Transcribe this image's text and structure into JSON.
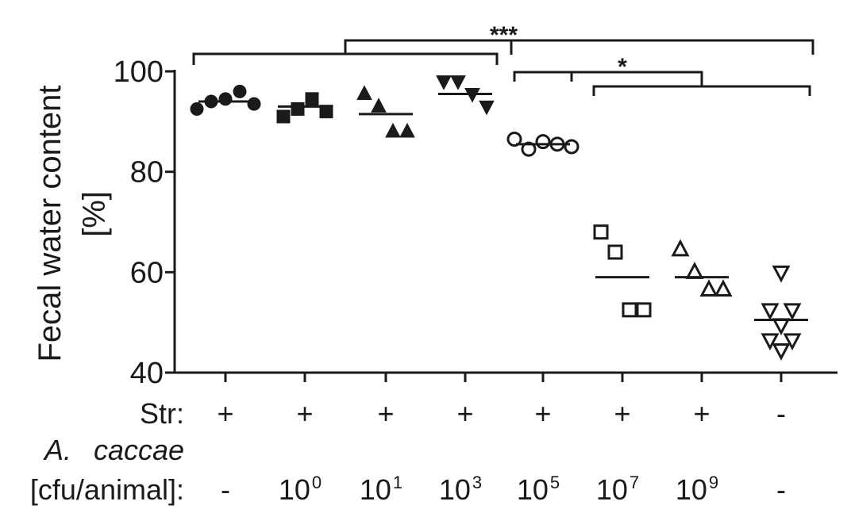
{
  "chart_data": {
    "type": "scatter",
    "title": "",
    "ylabel_line1": "Fecal water content",
    "ylabel_line2": "[%]",
    "ylim": [
      40,
      100
    ],
    "yticks": [
      "40",
      "60",
      "80",
      "100"
    ],
    "grid": false,
    "groups": [
      {
        "marker": "circle",
        "filled": true,
        "mean": 94,
        "values": [
          92.5,
          94,
          94.5,
          96,
          93.5
        ],
        "str": "+",
        "dose_base": "",
        "dose_exp": "",
        "dose_plain": "-"
      },
      {
        "marker": "square",
        "filled": true,
        "mean": 93,
        "values": [
          91,
          92.5,
          94.5,
          92
        ],
        "str": "+",
        "dose_base": "10",
        "dose_exp": "0",
        "dose_plain": ""
      },
      {
        "marker": "triangle-up",
        "filled": true,
        "mean": 91.5,
        "values": [
          95.5,
          93,
          88,
          88
        ],
        "str": "+",
        "dose_base": "10",
        "dose_exp": "1",
        "dose_plain": ""
      },
      {
        "marker": "triangle-down",
        "filled": true,
        "mean": 95.5,
        "values": [
          98,
          98,
          95.5,
          93
        ],
        "str": "+",
        "dose_base": "10",
        "dose_exp": "3",
        "dose_plain": ""
      },
      {
        "marker": "circle",
        "filled": false,
        "mean": 85.5,
        "values": [
          86.5,
          84.5,
          86,
          85.5,
          85
        ],
        "str": "+",
        "dose_base": "10",
        "dose_exp": "5",
        "dose_plain": ""
      },
      {
        "marker": "square",
        "filled": false,
        "mean": 59,
        "values": [
          68,
          64,
          52.5,
          52.5
        ],
        "str": "+",
        "dose_base": "10",
        "dose_exp": "7",
        "dose_plain": ""
      },
      {
        "marker": "triangle-up",
        "filled": false,
        "mean": 59,
        "values": [
          64.5,
          60,
          56.5,
          56.5
        ],
        "str": "+",
        "dose_base": "10",
        "dose_exp": "9",
        "dose_plain": ""
      },
      {
        "marker": "triangle-down",
        "filled": false,
        "mean": 50.5,
        "values": [
          60,
          52.5,
          52.5,
          49.5,
          46.5,
          46.5,
          44.5
        ],
        "str": "-",
        "dose_base": "",
        "dose_exp": "",
        "dose_plain": "-"
      }
    ],
    "row_labels": {
      "str": "Str:",
      "organism_abbrev": "A.",
      "organism_name": "caccae",
      "units": "[cfu/animal]:"
    },
    "significance": [
      {
        "label": "***",
        "left_groups": [
          0,
          3
        ],
        "right_groups": [
          4,
          7
        ]
      },
      {
        "label": "*",
        "left_groups": [
          4,
          4
        ],
        "right_groups": [
          5,
          7
        ]
      }
    ]
  }
}
